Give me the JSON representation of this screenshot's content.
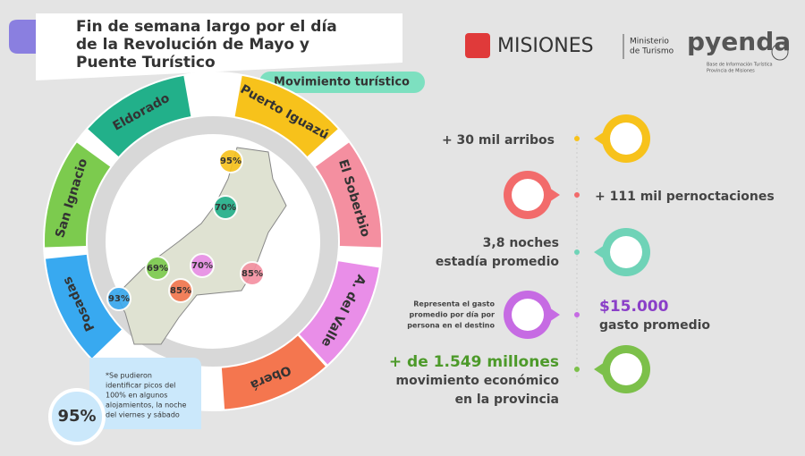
{
  "header": {
    "title_lines": [
      "Fin de semana largo por el día",
      "de la Revolución de Mayo y",
      "Puente Turístico"
    ],
    "subtitle": "Movimiento turístico"
  },
  "logos": {
    "misiones": "MISIONES",
    "ministry_lines": [
      "Ministerio",
      "de Turismo"
    ],
    "pyenda": "pyenda",
    "pyenda_sub_lines": [
      "Base de Información Turística",
      "Provincia de Misiones"
    ]
  },
  "destinations": [
    {
      "name": "Puerto Iguazú",
      "color": "#f7c21b"
    },
    {
      "name": "El Soberbio",
      "color": "#f48fa0"
    },
    {
      "name": "A. del Valle",
      "color": "#e98ee8"
    },
    {
      "name": "Oberá",
      "color": "#f4764f"
    },
    {
      "name": "Posadas",
      "color": "#38a9f0"
    },
    {
      "name": "San Ignacio",
      "color": "#7ccb4e"
    },
    {
      "name": "Eldorado",
      "color": "#22b08a"
    }
  ],
  "map_occupancy": [
    {
      "label": "95%",
      "color": "#f7c21b"
    },
    {
      "label": "70%",
      "color": "#22b08a"
    },
    {
      "label": "69%",
      "color": "#7ccb4e"
    },
    {
      "label": "70%",
      "color": "#e98ee8"
    },
    {
      "label": "85%",
      "color": "#f48fa0"
    },
    {
      "label": "85%",
      "color": "#f4764f"
    },
    {
      "label": "93%",
      "color": "#38a9f0"
    }
  ],
  "note": {
    "value": "95%",
    "text_lines": [
      "*Se pudieron",
      "identificar picos del",
      "100% en algunos",
      "alojamientos, la noche",
      "del viernes y sábado"
    ]
  },
  "stats": [
    {
      "lines": [
        "+ 30 mil arribos"
      ],
      "color": "#f7c21b"
    },
    {
      "lines": [
        "+ 111 mil pernoctaciones"
      ],
      "color": "#f26b6b"
    },
    {
      "lines": [
        "3,8 noches",
        "estadía promedio"
      ],
      "color": "#6fd3b7"
    },
    {
      "lines": [
        "$15.000",
        "gasto promedio"
      ],
      "color": "#c66be3",
      "side_lines": [
        "Representa el gasto",
        "promedio por día por",
        "persona en el destino"
      ]
    },
    {
      "lines": [
        "+ de 1.549 millones",
        "movimiento económico",
        "en la provincia"
      ],
      "color": "#7cc04a"
    }
  ]
}
